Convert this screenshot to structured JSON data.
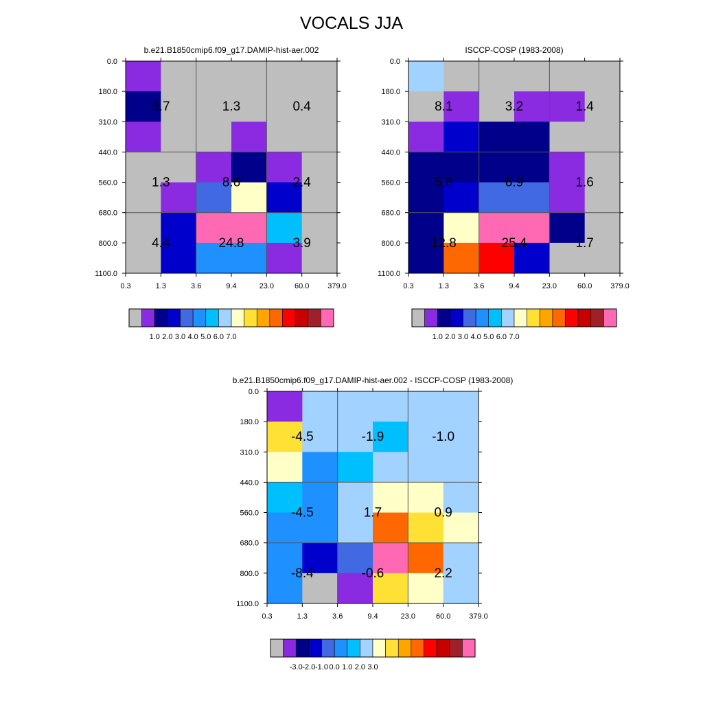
{
  "title": "VOCALS JJA",
  "chart_data": [
    {
      "type": "heatmap",
      "title": "b.e21.B1850cmip6.f09_g17.DAMIP-hist-aer.002",
      "x_tick_labels": [
        "0.3",
        "1.3",
        "3.6",
        "9.4",
        "23.0",
        "60.0",
        "379.0"
      ],
      "y_tick_labels": [
        "0.0",
        "180.0",
        "310.0",
        "440.0",
        "560.0",
        "680.0",
        "800.0",
        "1100.0"
      ],
      "cells": [
        [
          "purple",
          "gray",
          "gray",
          "gray",
          "gray",
          "gray"
        ],
        [
          "navy",
          "gray",
          "gray",
          "gray",
          "gray",
          "gray"
        ],
        [
          "purple",
          "gray",
          "gray",
          "purple",
          "gray",
          "gray"
        ],
        [
          "gray",
          "gray",
          "purple",
          "navy",
          "purple",
          "gray"
        ],
        [
          "gray",
          "purple",
          "royalblue",
          "lightyellow",
          "blue",
          "gray"
        ],
        [
          "gray",
          "blue",
          "pink",
          "pink",
          "cyan",
          "gray"
        ],
        [
          "gray",
          "blue",
          "dodgerblue",
          "dodgerblue",
          "purple",
          "gray"
        ]
      ],
      "block_values": [
        [
          "3.7",
          "1.3",
          "0.4"
        ],
        [
          "1.3",
          "8.6",
          "2.4"
        ],
        [
          "4.4",
          "24.8",
          "3.9"
        ]
      ],
      "colorbar": {
        "colors": [
          "#BEBEBE",
          "#8A2BE2",
          "#00008B",
          "#0000CD",
          "#4169E1",
          "#1E90FF",
          "#00BFFF",
          "#A2D2FF",
          "#FFFFC8",
          "#FFE135",
          "#FFA500",
          "#FF6700",
          "#FF0000",
          "#C80000",
          "#A0202A",
          "#FF69B4"
        ],
        "labels": [
          "1.0",
          "2.0",
          "3.0",
          "4.0",
          "5.0",
          "6.0",
          "7.0"
        ]
      }
    },
    {
      "type": "heatmap",
      "title": "ISCCP-COSP (1983-2008)",
      "x_tick_labels": [
        "0.3",
        "1.3",
        "3.6",
        "9.4",
        "23.0",
        "60.0",
        "379.0"
      ],
      "y_tick_labels": [
        "0.0",
        "180.0",
        "310.0",
        "440.0",
        "560.0",
        "680.0",
        "800.0",
        "1100.0"
      ],
      "cells": [
        [
          "skyblue",
          "gray",
          "gray",
          "gray",
          "gray",
          "gray"
        ],
        [
          "gray",
          "purple",
          "gray",
          "purple",
          "purple",
          "gray"
        ],
        [
          "purple",
          "blue",
          "navy",
          "navy",
          "gray",
          "gray"
        ],
        [
          "navy",
          "navy",
          "navy",
          "navy",
          "purple",
          "gray"
        ],
        [
          "navy",
          "blue",
          "royalblue",
          "royalblue",
          "purple",
          "gray"
        ],
        [
          "navy",
          "lightyellow",
          "pink",
          "pink",
          "navy",
          "gray"
        ],
        [
          "navy",
          "darkorange",
          "red",
          "blue",
          "gray",
          "gray"
        ]
      ],
      "block_values": [
        [
          "8.1",
          "3.2",
          "1.4"
        ],
        [
          "5.8",
          "6.9",
          "1.6"
        ],
        [
          "12.8",
          "25.4",
          "1.7"
        ]
      ],
      "colorbar": {
        "colors": [
          "#BEBEBE",
          "#8A2BE2",
          "#00008B",
          "#0000CD",
          "#4169E1",
          "#1E90FF",
          "#00BFFF",
          "#A2D2FF",
          "#FFFFC8",
          "#FFE135",
          "#FFA500",
          "#FF6700",
          "#FF0000",
          "#C80000",
          "#A0202A",
          "#FF69B4"
        ],
        "labels": [
          "1.0",
          "2.0",
          "3.0",
          "4.0",
          "5.0",
          "6.0",
          "7.0"
        ]
      }
    },
    {
      "type": "heatmap",
      "title": "b.e21.B1850cmip6.f09_g17.DAMIP-hist-aer.002 - ISCCP-COSP (1983-2008)",
      "x_tick_labels": [
        "0.3",
        "1.3",
        "3.6",
        "9.4",
        "23.0",
        "60.0",
        "379.0"
      ],
      "y_tick_labels": [
        "0.0",
        "180.0",
        "310.0",
        "440.0",
        "560.0",
        "680.0",
        "800.0",
        "1100.0"
      ],
      "cells": [
        [
          "purple",
          "skyblue",
          "skyblue",
          "skyblue",
          "skyblue",
          "skyblue"
        ],
        [
          "gold",
          "skyblue",
          "skyblue",
          "cyan",
          "skyblue",
          "skyblue"
        ],
        [
          "lightyellow",
          "dodgerblue",
          "cyan",
          "skyblue",
          "skyblue",
          "skyblue"
        ],
        [
          "cyan",
          "dodgerblue",
          "skyblue",
          "lightyellow",
          "lightyellow",
          "skyblue"
        ],
        [
          "dodgerblue",
          "dodgerblue",
          "skyblue",
          "darkorange",
          "gold",
          "lightyellow"
        ],
        [
          "dodgerblue",
          "blue",
          "royalblue",
          "pink",
          "darkorange",
          "skyblue"
        ],
        [
          "dodgerblue",
          "gray",
          "purple",
          "gold",
          "lightyellow",
          "skyblue"
        ]
      ],
      "block_values": [
        [
          "-4.5",
          "-1.9",
          "-1.0"
        ],
        [
          "-4.5",
          "1.7",
          "0.9"
        ],
        [
          "-8.4",
          "-0.6",
          "2.2"
        ]
      ],
      "colorbar": {
        "colors": [
          "#BEBEBE",
          "#8A2BE2",
          "#00008B",
          "#0000CD",
          "#4169E1",
          "#1E90FF",
          "#00BFFF",
          "#A2D2FF",
          "#FFFFC8",
          "#FFE135",
          "#FFA500",
          "#FF6700",
          "#FF0000",
          "#C80000",
          "#A0202A",
          "#FF69B4"
        ],
        "labels": [
          "-3.0",
          "-2.0",
          "-1.0",
          "0.0",
          "1.0",
          "2.0",
          "3.0"
        ]
      }
    }
  ],
  "palette": {
    "gray": "#BEBEBE",
    "purple": "#8A2BE2",
    "navy": "#00008B",
    "blue": "#0000CD",
    "royalblue": "#4169E1",
    "dodgerblue": "#1E90FF",
    "cyan": "#00BFFF",
    "skyblue": "#A2D2FF",
    "lightyellow": "#FFFFC8",
    "gold": "#FFE135",
    "orange": "#FFA500",
    "darkorange": "#FF6700",
    "red": "#FF0000",
    "darkred": "#C80000",
    "brown": "#A0202A",
    "pink": "#FF69B4"
  }
}
